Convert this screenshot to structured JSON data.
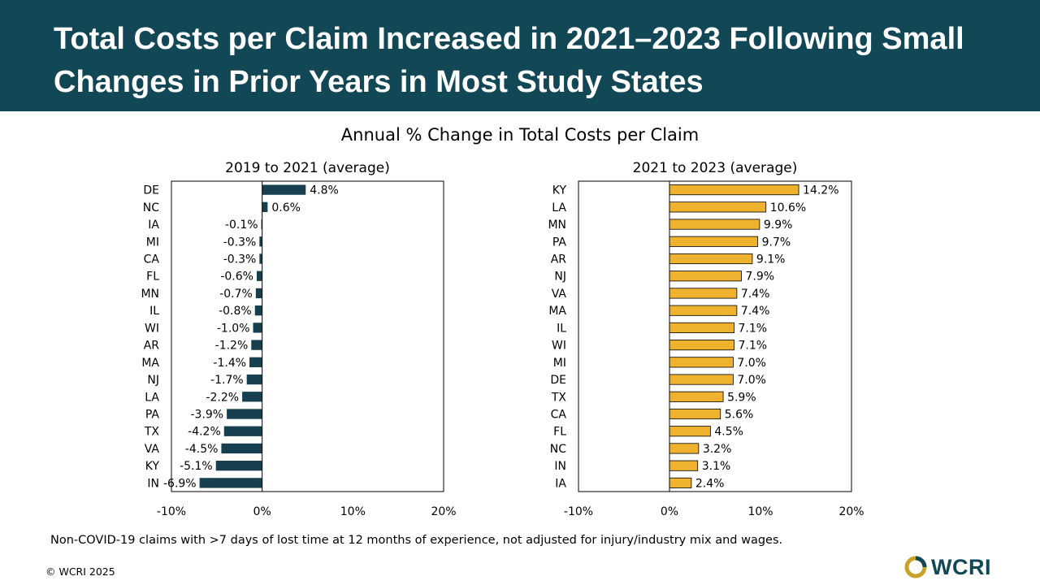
{
  "header": {
    "title": "Total Costs per Claim Increased in 2021–2023 Following Small Changes in Prior Years in Most Study States"
  },
  "suptitle": "Annual % Change in Total Costs per Claim",
  "footnote": "Non-COVID-19 claims with >7 days of lost time at 12 months of experience, not adjusted for injury/industry mix and wages.",
  "copyright": "© WCRI 2025",
  "logo": {
    "text": "WCRI",
    "icon": "wcri-logo-icon"
  },
  "colors": {
    "banner": "#124756",
    "left_bars": "#16404F",
    "right_bars": "#EFB22F",
    "bar_stroke": "#000000"
  },
  "chart_data": [
    {
      "type": "bar",
      "orientation": "horizontal",
      "title": "2019 to 2021 (average)",
      "categories": [
        "DE",
        "NC",
        "IA",
        "MI",
        "CA",
        "FL",
        "MN",
        "IL",
        "WI",
        "AR",
        "MA",
        "NJ",
        "LA",
        "PA",
        "TX",
        "VA",
        "KY",
        "IN"
      ],
      "values": [
        4.8,
        0.6,
        -0.1,
        -0.3,
        -0.3,
        -0.6,
        -0.7,
        -0.8,
        -1.0,
        -1.2,
        -1.4,
        -1.7,
        -2.2,
        -3.9,
        -4.2,
        -4.5,
        -5.1,
        -6.9
      ],
      "data_labels": [
        "4.8%",
        "0.6%",
        "-0.1%",
        "-0.3%",
        "-0.3%",
        "-0.6%",
        "-0.7%",
        "-0.8%",
        "-1.0%",
        "-1.2%",
        "-1.4%",
        "-1.7%",
        "-2.2%",
        "-3.9%",
        "-4.2%",
        "-4.5%",
        "-5.1%",
        "-6.9%"
      ],
      "xlim": [
        -10,
        20
      ],
      "ticks": [
        -10,
        0,
        10,
        20
      ],
      "tick_labels": [
        "-10%",
        "0%",
        "10%",
        "20%"
      ],
      "grid": false,
      "color": "#16404F"
    },
    {
      "type": "bar",
      "orientation": "horizontal",
      "title": "2021 to 2023 (average)",
      "categories": [
        "KY",
        "LA",
        "MN",
        "PA",
        "AR",
        "NJ",
        "VA",
        "MA",
        "IL",
        "WI",
        "MI",
        "DE",
        "TX",
        "CA",
        "FL",
        "NC",
        "IN",
        "IA"
      ],
      "values": [
        14.2,
        10.6,
        9.9,
        9.7,
        9.1,
        7.9,
        7.4,
        7.4,
        7.1,
        7.1,
        7.0,
        7.0,
        5.9,
        5.6,
        4.5,
        3.2,
        3.1,
        2.4
      ],
      "data_labels": [
        "14.2%",
        "10.6%",
        "9.9%",
        "9.7%",
        "9.1%",
        "7.9%",
        "7.4%",
        "7.4%",
        "7.1%",
        "7.1%",
        "7.0%",
        "7.0%",
        "5.9%",
        "5.6%",
        "4.5%",
        "3.2%",
        "3.1%",
        "2.4%"
      ],
      "xlim": [
        -10,
        20
      ],
      "ticks": [
        -10,
        0,
        10,
        20
      ],
      "tick_labels": [
        "-10%",
        "0%",
        "10%",
        "20%"
      ],
      "grid": false,
      "color": "#EFB22F"
    }
  ]
}
